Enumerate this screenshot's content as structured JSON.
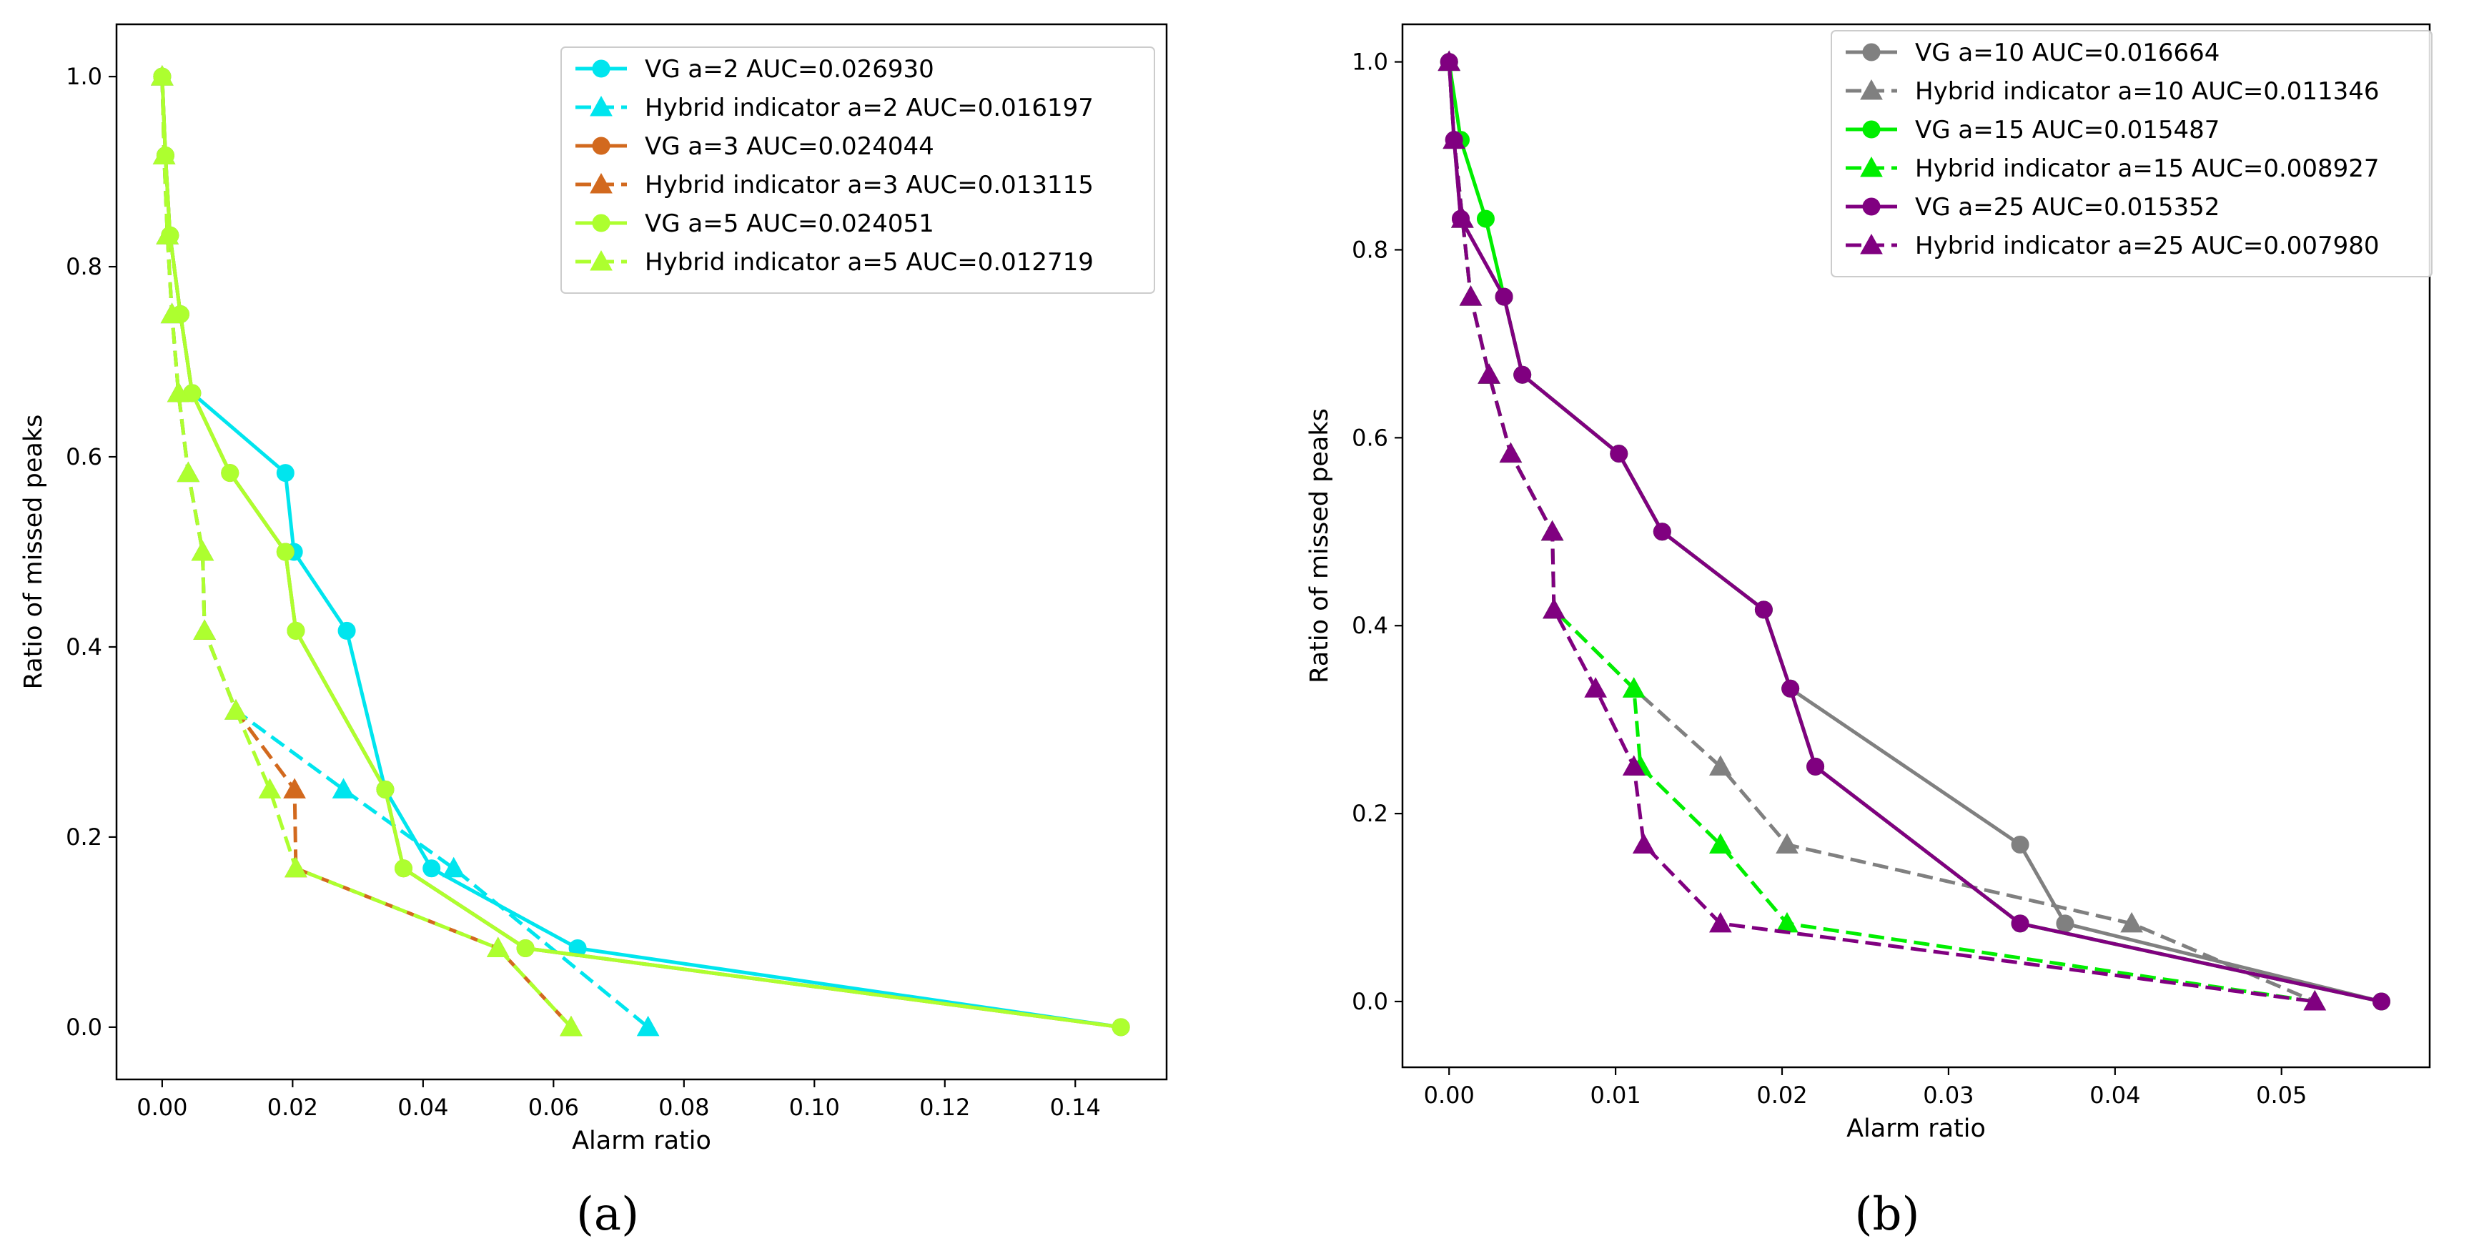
{
  "chart_data": [
    {
      "type": "line",
      "caption": "(a)",
      "xlabel": "Alarm ratio",
      "ylabel": "Ratio of missed peaks",
      "xlim": [
        -0.007,
        0.154
      ],
      "ylim": [
        -0.055,
        1.055
      ],
      "xticks": [
        0.0,
        0.02,
        0.04,
        0.06,
        0.08,
        0.1,
        0.12,
        0.14
      ],
      "xtick_labels": [
        "0.00",
        "0.02",
        "0.04",
        "0.06",
        "0.08",
        "0.10",
        "0.12",
        "0.14"
      ],
      "yticks": [
        0.0,
        0.2,
        0.4,
        0.6,
        0.8,
        1.0
      ],
      "ytick_labels": [
        "0.0",
        "0.2",
        "0.4",
        "0.6",
        "0.8",
        "1.0"
      ],
      "legend_position": "top-right",
      "series": [
        {
          "name": "VG a=2 AUC=0.026930",
          "color": "#00e5ee",
          "marker": "circle",
          "linestyle": "solid",
          "x": [
            0.0,
            0.0005,
            0.0012,
            0.0028,
            0.0046,
            0.0189,
            0.0202,
            0.0283,
            0.0342,
            0.0413,
            0.0637,
            0.147
          ],
          "y": [
            1.0,
            0.917,
            0.833,
            0.75,
            0.667,
            0.583,
            0.5,
            0.417,
            0.25,
            0.167,
            0.083,
            0.0
          ]
        },
        {
          "name": "Hybrid indicator a=2 AUC=0.016197",
          "color": "#00e5ee",
          "marker": "triangle",
          "linestyle": "dashed",
          "x": [
            0.0,
            0.0003,
            0.0008,
            0.0015,
            0.0025,
            0.004,
            0.0062,
            0.0065,
            0.0113,
            0.0278,
            0.0447,
            0.0745
          ],
          "y": [
            1.0,
            0.917,
            0.833,
            0.75,
            0.667,
            0.583,
            0.5,
            0.417,
            0.333,
            0.25,
            0.167,
            0.0
          ]
        },
        {
          "name": "VG a=3 AUC=0.024044",
          "color": "#d2691e",
          "marker": "circle",
          "linestyle": "solid",
          "x": [
            0.0,
            0.0005,
            0.0012,
            0.0028,
            0.0046,
            0.0104,
            0.0189,
            0.0205,
            0.0342,
            0.037,
            0.0557,
            0.147
          ],
          "y": [
            1.0,
            0.917,
            0.833,
            0.75,
            0.667,
            0.583,
            0.5,
            0.417,
            0.25,
            0.167,
            0.083,
            0.0
          ]
        },
        {
          "name": "Hybrid indicator a=3 AUC=0.013115",
          "color": "#d2691e",
          "marker": "triangle",
          "linestyle": "dashed",
          "x": [
            0.0,
            0.0003,
            0.0008,
            0.0015,
            0.0025,
            0.004,
            0.0062,
            0.0065,
            0.0113,
            0.0203,
            0.0205,
            0.0515,
            0.0627
          ],
          "y": [
            1.0,
            0.917,
            0.833,
            0.75,
            0.667,
            0.583,
            0.5,
            0.417,
            0.333,
            0.25,
            0.167,
            0.083,
            0.0
          ]
        },
        {
          "name": "VG a=5 AUC=0.024051",
          "color": "#adff2f",
          "marker": "circle",
          "linestyle": "solid",
          "x": [
            0.0,
            0.0005,
            0.0012,
            0.0028,
            0.0046,
            0.0104,
            0.0189,
            0.0205,
            0.0342,
            0.037,
            0.0557,
            0.147
          ],
          "y": [
            1.0,
            0.917,
            0.833,
            0.75,
            0.667,
            0.583,
            0.5,
            0.417,
            0.25,
            0.167,
            0.083,
            0.0
          ]
        },
        {
          "name": "Hybrid indicator a=5 AUC=0.012719",
          "color": "#adff2f",
          "marker": "triangle",
          "linestyle": "dashed",
          "x": [
            0.0,
            0.0003,
            0.0008,
            0.0015,
            0.0025,
            0.004,
            0.0062,
            0.0065,
            0.0113,
            0.0165,
            0.0205,
            0.0515,
            0.0627
          ],
          "y": [
            1.0,
            0.917,
            0.833,
            0.75,
            0.667,
            0.583,
            0.5,
            0.417,
            0.333,
            0.25,
            0.167,
            0.083,
            0.0
          ]
        }
      ]
    },
    {
      "type": "line",
      "caption": "(b)",
      "xlabel": "Alarm ratio",
      "ylabel": "Ratio of missed peaks",
      "xlim": [
        -0.0028,
        0.0589
      ],
      "ylim": [
        -0.07,
        1.04
      ],
      "xticks": [
        0.0,
        0.01,
        0.02,
        0.03,
        0.04,
        0.05
      ],
      "xtick_labels": [
        "0.00",
        "0.01",
        "0.02",
        "0.03",
        "0.04",
        "0.05"
      ],
      "yticks": [
        0.0,
        0.2,
        0.4,
        0.6,
        0.8,
        1.0
      ],
      "ytick_labels": [
        "0.0",
        "0.2",
        "0.4",
        "0.6",
        "0.8",
        "1.0"
      ],
      "legend_position": "top-right",
      "series": [
        {
          "name": "VG a=10 AUC=0.016664",
          "color": "#808080",
          "marker": "circle",
          "linestyle": "solid",
          "x": [
            0.0,
            0.0003,
            0.0007,
            0.0033,
            0.0044,
            0.0102,
            0.0128,
            0.0189,
            0.0205,
            0.0343,
            0.037,
            0.056
          ],
          "y": [
            1.0,
            0.917,
            0.833,
            0.75,
            0.667,
            0.583,
            0.5,
            0.417,
            0.333,
            0.167,
            0.083,
            0.0
          ]
        },
        {
          "name": "Hybrid indicator a=10 AUC=0.011346",
          "color": "#808080",
          "marker": "triangle",
          "linestyle": "dashed",
          "x": [
            0.0,
            0.0003,
            0.0008,
            0.0013,
            0.0024,
            0.0037,
            0.0062,
            0.0063,
            0.0111,
            0.0163,
            0.0203,
            0.041,
            0.052
          ],
          "y": [
            1.0,
            0.917,
            0.833,
            0.75,
            0.667,
            0.583,
            0.5,
            0.417,
            0.333,
            0.25,
            0.167,
            0.083,
            0.0
          ]
        },
        {
          "name": "VG a=15 AUC=0.015487",
          "color": "#00ee00",
          "marker": "circle",
          "linestyle": "solid",
          "x": [
            0.0,
            0.0007,
            0.0022,
            0.0033,
            0.0044,
            0.0102,
            0.0128,
            0.0189,
            0.0205,
            0.022,
            0.0343,
            0.056
          ],
          "y": [
            1.0,
            0.917,
            0.833,
            0.75,
            0.667,
            0.583,
            0.5,
            0.417,
            0.333,
            0.25,
            0.083,
            0.0
          ]
        },
        {
          "name": "Hybrid indicator a=15 AUC=0.008927",
          "color": "#00ee00",
          "marker": "triangle",
          "linestyle": "dashed",
          "x": [
            0.0,
            0.0003,
            0.0008,
            0.0013,
            0.0024,
            0.0037,
            0.0062,
            0.0063,
            0.0111,
            0.0115,
            0.0163,
            0.0203,
            0.052
          ],
          "y": [
            1.0,
            0.917,
            0.833,
            0.75,
            0.667,
            0.583,
            0.5,
            0.417,
            0.333,
            0.25,
            0.167,
            0.083,
            0.0
          ]
        },
        {
          "name": "VG a=25 AUC=0.015352",
          "color": "#800080",
          "marker": "circle",
          "linestyle": "solid",
          "x": [
            0.0,
            0.0003,
            0.0007,
            0.0033,
            0.0044,
            0.0102,
            0.0128,
            0.0189,
            0.0205,
            0.022,
            0.0343,
            0.056
          ],
          "y": [
            1.0,
            0.917,
            0.833,
            0.75,
            0.667,
            0.583,
            0.5,
            0.417,
            0.333,
            0.25,
            0.083,
            0.0
          ]
        },
        {
          "name": "Hybrid indicator a=25 AUC=0.007980",
          "color": "#800080",
          "marker": "triangle",
          "linestyle": "dashed",
          "x": [
            0.0,
            0.0003,
            0.0008,
            0.0013,
            0.0024,
            0.0037,
            0.0062,
            0.0063,
            0.0088,
            0.0111,
            0.0117,
            0.0163,
            0.052
          ],
          "y": [
            1.0,
            0.917,
            0.833,
            0.75,
            0.667,
            0.583,
            0.5,
            0.417,
            0.333,
            0.25,
            0.167,
            0.083,
            0.0
          ]
        }
      ]
    }
  ]
}
